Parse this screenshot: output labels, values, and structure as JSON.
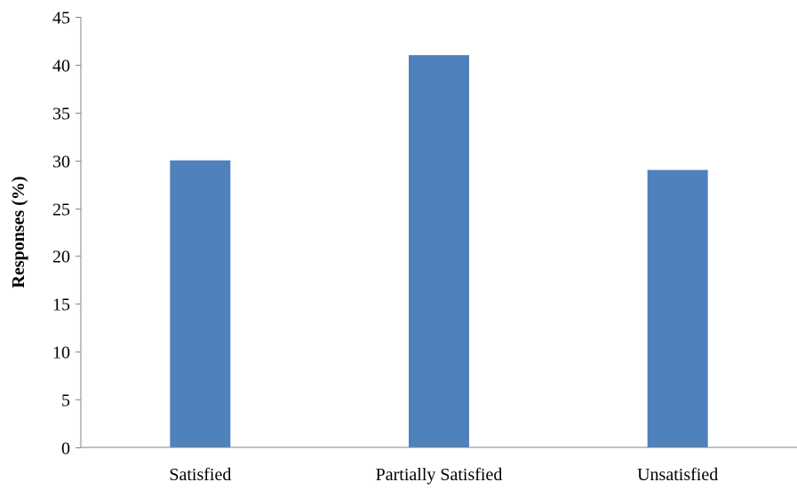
{
  "chart_data": {
    "type": "bar",
    "categories": [
      "Satisfied",
      "Partially Satisfied",
      "Unsatisfied"
    ],
    "values": [
      30,
      41,
      29
    ],
    "title": "",
    "xlabel": "",
    "ylabel": "Responses (%)",
    "ylim": [
      0,
      45
    ],
    "yticks": [
      0,
      5,
      10,
      15,
      20,
      25,
      30,
      35,
      40,
      45
    ],
    "grid": false,
    "legend": "none",
    "bar_color": "#4f81bd"
  }
}
